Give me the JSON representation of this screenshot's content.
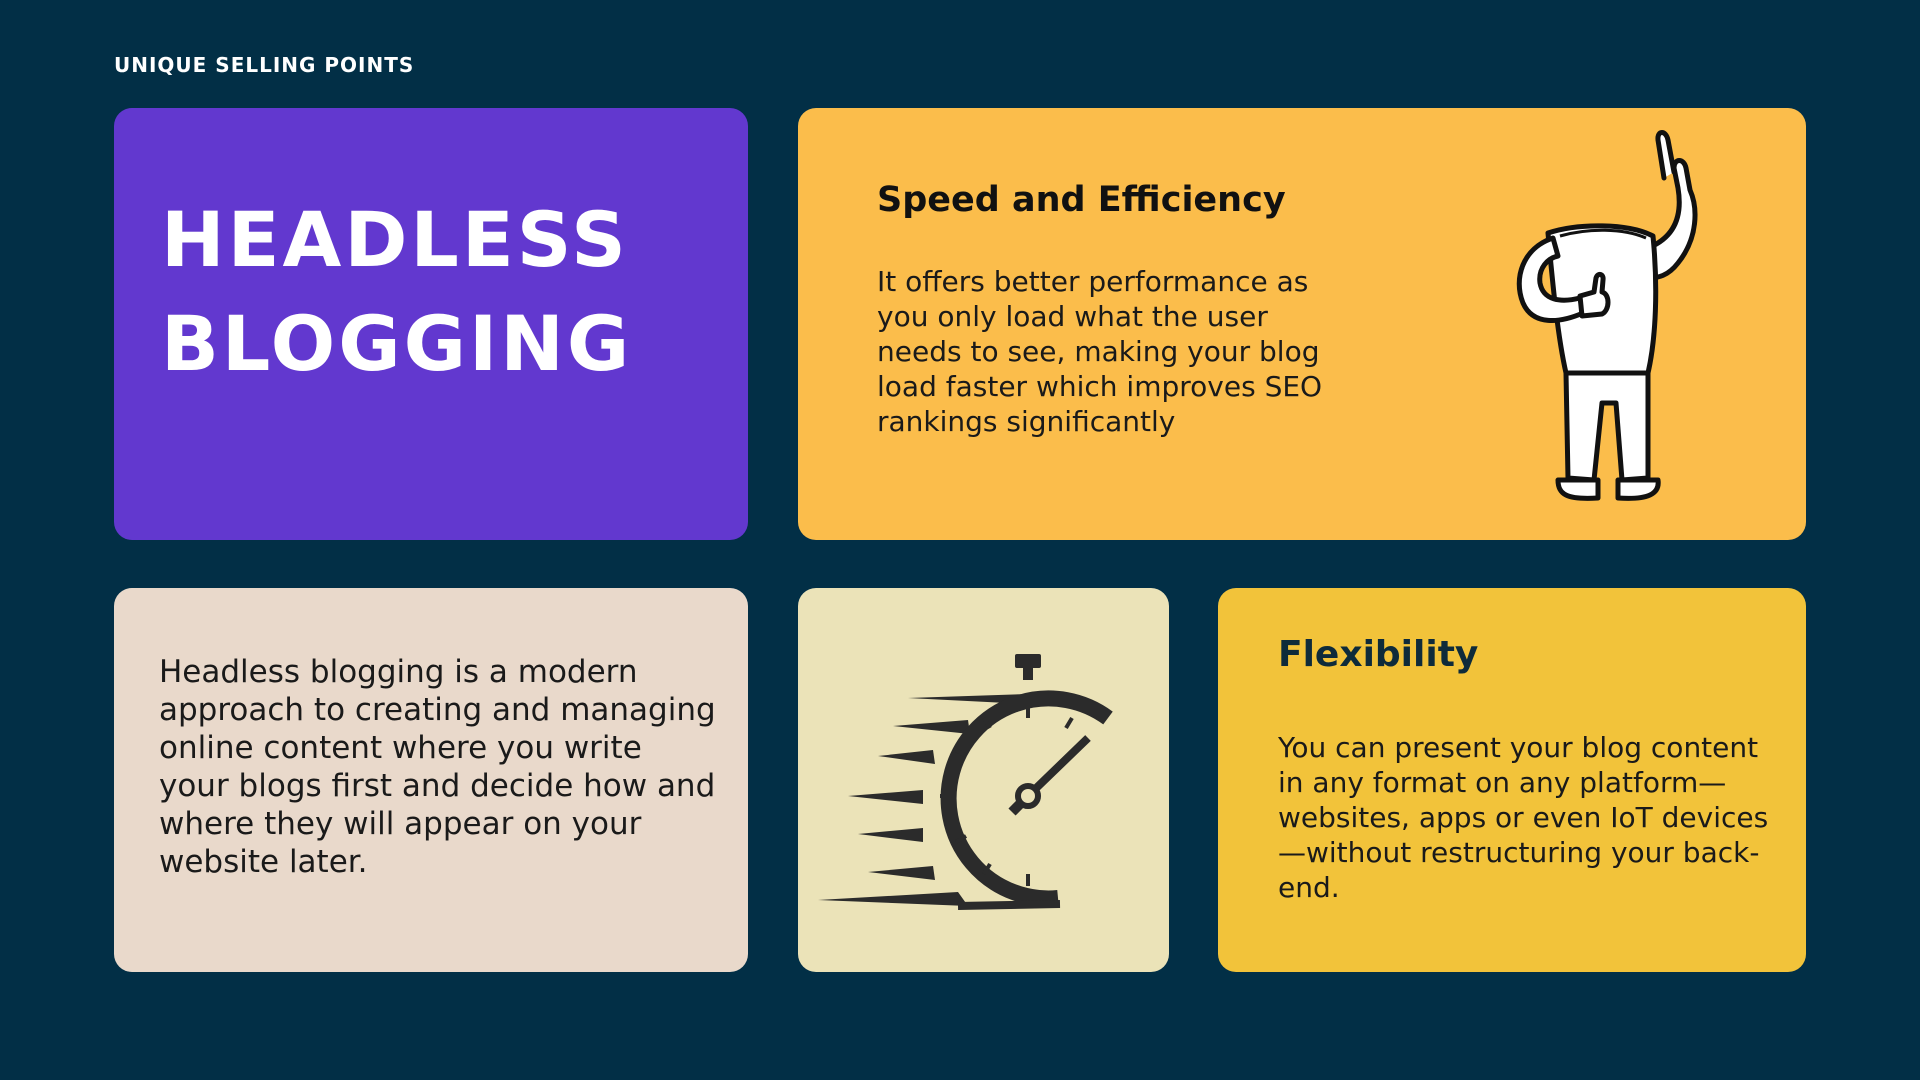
{
  "eyebrow": "UNIQUE SELLING POINTS",
  "title": {
    "line1": "HEADLESS",
    "line2": "BLOGGING"
  },
  "speed": {
    "heading": "Speed and Efficiency",
    "body": "It offers better performance as you only load what the user needs to see, making your blog load faster which improves SEO rankings significantly",
    "illustration": "headless-person-pointing-up-icon"
  },
  "intro": {
    "body": "Headless blogging is a modern approach to creating and managing online content where you write your blogs first and decide how and where they will appear on your website later."
  },
  "timer": {
    "illustration": "stopwatch-speed-icon"
  },
  "flexibility": {
    "heading": "Flexibility",
    "body": "You can present your blog content in any format on any platform—websites, apps or even IoT devices—without restructuring your back-end."
  },
  "colors": {
    "background": "#022f46",
    "purple_card": "#6238cf",
    "orange_card": "#fbbd4b",
    "beige_card": "#e9d9cb",
    "cream_card": "#ebe3b8",
    "yellow_card": "#f2c33a"
  }
}
